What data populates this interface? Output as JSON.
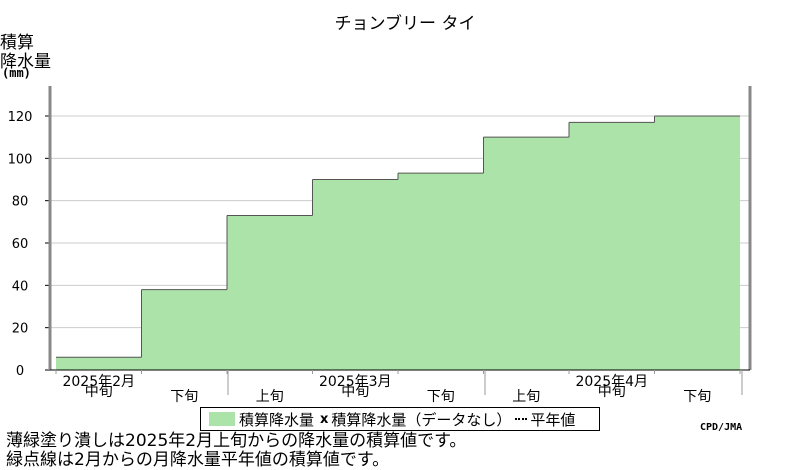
{
  "chart_data": {
    "type": "bar",
    "title": "チョンブリー タイ",
    "ylabel": [
      "積算",
      "降水量",
      "(mm)"
    ],
    "ylim": [
      0,
      120
    ],
    "yticks": [
      0,
      20,
      40,
      60,
      80,
      100,
      120
    ],
    "grid": true,
    "periods": [
      "中旬",
      "下旬",
      "上旬",
      "中旬",
      "下旬",
      "上旬",
      "中旬",
      "下旬"
    ],
    "months": [
      "2025年2月",
      "2025年3月",
      "2025年4月"
    ],
    "series": [
      {
        "name": "積算降水量",
        "color": "#acE3A8",
        "values": [
          6,
          38,
          73,
          90,
          93,
          110,
          117,
          120
        ]
      }
    ],
    "legend": {
      "items": [
        "積算降水量",
        "積算降水量（データなし）",
        "平年値"
      ],
      "placement": "bottom"
    }
  },
  "credit": "CPD/JMA",
  "notes": [
    "薄緑塗り潰しは2025年2月上旬からの降水量の積算値です。",
    "緑点線は2月からの月降水量平年値の積算値です。"
  ]
}
